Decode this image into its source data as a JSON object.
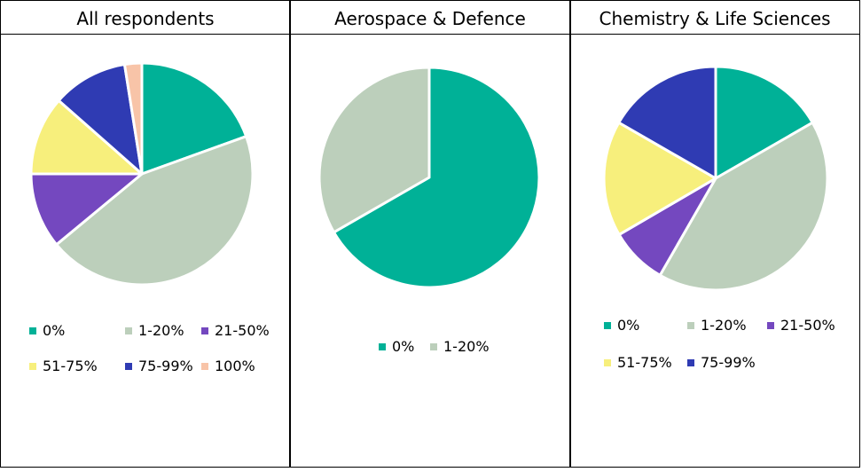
{
  "chart_data": [
    {
      "type": "pie",
      "title": "All respondents",
      "categories": [
        "0%",
        "1-20%",
        "21-50%",
        "51-75%",
        "75-99%",
        "100%"
      ],
      "values": [
        19.5,
        44.5,
        11,
        11.5,
        11,
        2.5
      ],
      "colors": [
        "#00b197",
        "#bccfbb",
        "#7448bf",
        "#f7ef7c",
        "#2f3bb3",
        "#f8c4a8"
      ],
      "legend": "bottom"
    },
    {
      "type": "pie",
      "title": "Aerospace & Defence",
      "categories": [
        "0%",
        "1-20%"
      ],
      "values": [
        66.7,
        33.3
      ],
      "colors": [
        "#00b197",
        "#bccfbb"
      ],
      "legend": "bottom"
    },
    {
      "type": "pie",
      "title": "Chemistry & Life Sciences",
      "categories": [
        "0%",
        "1-20%",
        "21-50%",
        "51-75%",
        "75-99%"
      ],
      "values": [
        16.7,
        41.6,
        8.3,
        16.7,
        16.7
      ],
      "colors": [
        "#00b197",
        "#bccfbb",
        "#7448bf",
        "#f7ef7c",
        "#2f3bb3"
      ],
      "legend": "bottom"
    }
  ]
}
